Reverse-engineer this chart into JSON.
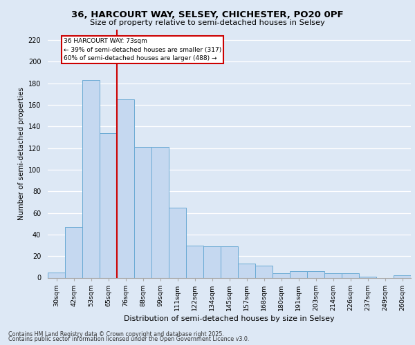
{
  "title1": "36, HARCOURT WAY, SELSEY, CHICHESTER, PO20 0PF",
  "title2": "Size of property relative to semi-detached houses in Selsey",
  "xlabel": "Distribution of semi-detached houses by size in Selsey",
  "ylabel": "Number of semi-detached properties",
  "categories": [
    "30sqm",
    "42sqm",
    "53sqm",
    "65sqm",
    "76sqm",
    "88sqm",
    "99sqm",
    "111sqm",
    "122sqm",
    "134sqm",
    "145sqm",
    "157sqm",
    "168sqm",
    "180sqm",
    "191sqm",
    "203sqm",
    "214sqm",
    "226sqm",
    "237sqm",
    "249sqm",
    "260sqm"
  ],
  "values": [
    5,
    47,
    183,
    134,
    165,
    121,
    121,
    65,
    30,
    29,
    29,
    13,
    11,
    4,
    6,
    6,
    4,
    4,
    1,
    0,
    2
  ],
  "bar_color": "#c5d8f0",
  "bar_edge_color": "#6aaad4",
  "vline_x": 3.5,
  "vline_label": "36 HARCOURT WAY: 73sqm",
  "annotation_line1": "← 39% of semi-detached houses are smaller (317)",
  "annotation_line2": "60% of semi-detached houses are larger (488) →",
  "box_color": "#cc0000",
  "bg_color": "#dde8f5",
  "grid_color": "#ffffff",
  "footer1": "Contains HM Land Registry data © Crown copyright and database right 2025.",
  "footer2": "Contains public sector information licensed under the Open Government Licence v3.0.",
  "ylim": [
    0,
    230
  ],
  "yticks": [
    0,
    20,
    40,
    60,
    80,
    100,
    120,
    140,
    160,
    180,
    200,
    220
  ]
}
